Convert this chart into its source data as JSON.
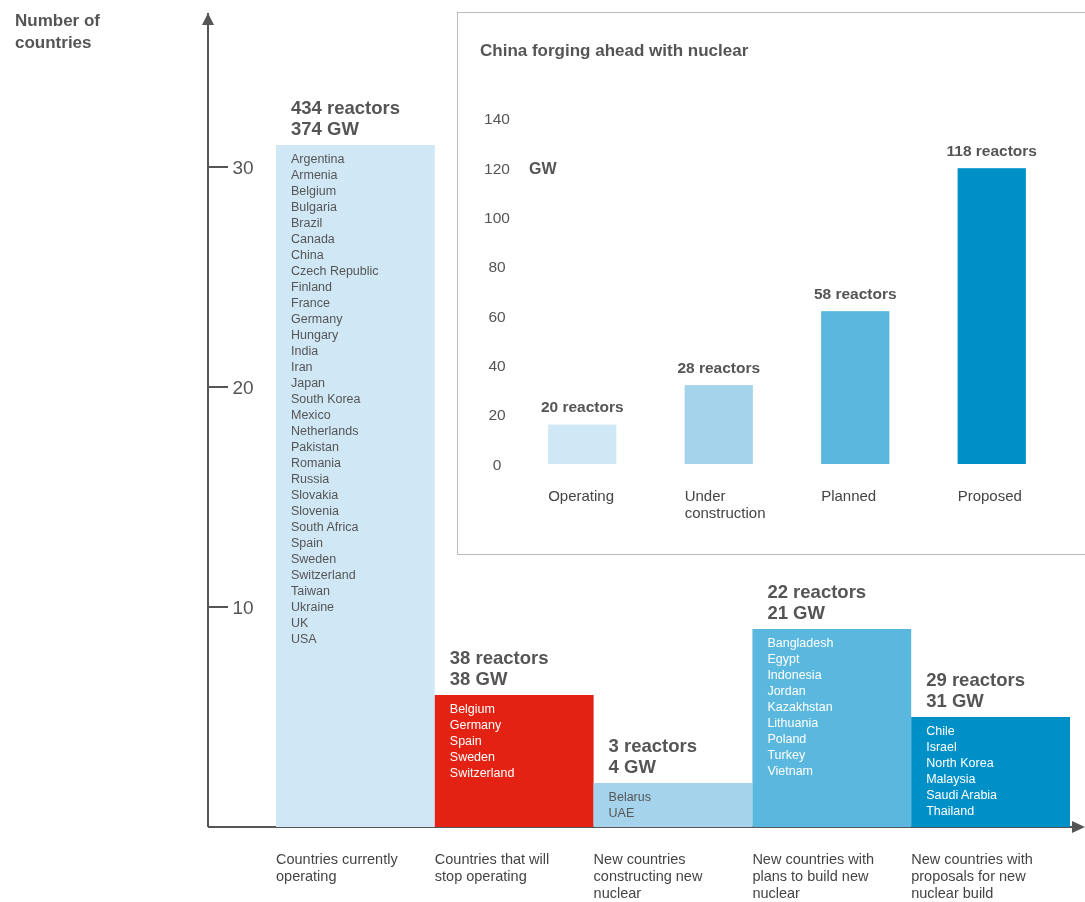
{
  "chart_data": [
    {
      "type": "bar",
      "ylabel": "Number of countries",
      "categories": [
        "Countries currently operating",
        "Countries that will stop operating",
        "New countries constructing new nuclear",
        "New countries with plans to build new nuclear",
        "New countries with proposals for new nuclear build"
      ],
      "values": [
        31,
        6,
        2,
        9,
        5
      ],
      "colors": [
        "#d0e8f5",
        "#e32213",
        "#a5d3eb",
        "#5ab8de",
        "#0090c8"
      ],
      "ylim": [
        0,
        37
      ],
      "yticks": [
        10,
        20,
        30
      ],
      "annotations": [
        {
          "text": "434 reactors\n374 GW",
          "x": "Countries currently operating",
          "y": 31
        },
        "Argentina\nArmenia\nBelgium\nBulgaria\nBrazil",
        "Canada\nChina\nCzech Republic\nFinland\nFrance",
        "Germany\nHungary\nIndia\nIran\nJapan",
        "South Korea\nMexico\nNetherlands\nPakistan\nRomania",
        "Russia\nSlovakia\nSlovenia\nSouth Africa\nSpain",
        "Sweden\nSwitzerland\nTaiwan\nUkraine\nUK",
        "USA",
        {
          "text": "38 reactors\n38 GW",
          "x": "Countries that will stop operating",
          "y": 6
        },
        "Belgium\nGermany\nSpain\nSweden\nSwitzerland",
        {
          "text": "3 reactors\n4 GW",
          "x": "New countries constructing new nuclear",
          "y": 2
        },
        "Belarus\nUAE",
        {
          "text": "22 reactors\n21 GW",
          "x": "New countries with plans to build new nuclear",
          "y": 9
        },
        "Bangladesh\nEgypt\nIndonesia\nJordan\nKazakhstan",
        "Lithuania\nPoland\nTurkey\nVietnam",
        {
          "text": "29 reactors\n31 GW",
          "x": "New countries with proposals for new nuclear build",
          "y": 5
        },
        "Chile\nIsrael\nNorth Korea\nMalaysia\nSaudi Arabia",
        "Thailand"
      ]
    },
    {
      "type": "bar",
      "title": "China forging ahead with nuclear",
      "ylabel": "GW",
      "categories": [
        "Operating",
        "Under construction",
        "Planned",
        "Proposed"
      ],
      "values": [
        16,
        32,
        62,
        120
      ],
      "colors": [
        "#d0e8f5",
        "#a5d3eb",
        "#5ab8de",
        "#0090c8"
      ],
      "ylim": [
        0,
        140
      ],
      "yticks": [
        0,
        20,
        40,
        60,
        80,
        100,
        120,
        140
      ],
      "annotations": [
        {
          "text": "20 reactors",
          "x": "Operating",
          "y": 16
        },
        {
          "text": "28 reactors",
          "x": "Under construction",
          "y": 32
        },
        {
          "text": "58 reactors",
          "x": "Planned",
          "y": 62
        },
        {
          "text": "118 reactors",
          "x": "Proposed",
          "y": 120
        }
      ]
    }
  ]
}
